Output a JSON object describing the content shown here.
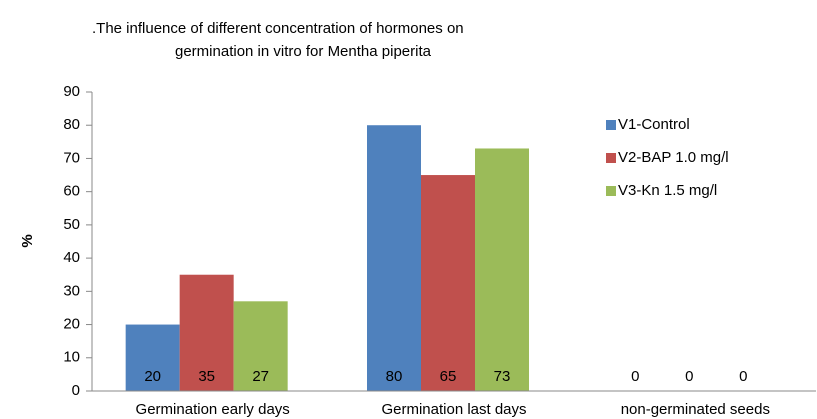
{
  "chart_data": {
    "type": "bar",
    "title": [
      ".The influence of different concentration of hormones on",
      "germination in vitro for Mentha piperita"
    ],
    "y_label": "%",
    "categories": [
      "Germination early days",
      "Germination last days",
      "non-germinated seeds"
    ],
    "series": [
      {
        "name": "V1-Control",
        "color": "#4f81bd",
        "values": [
          20,
          80,
          0
        ]
      },
      {
        "name": "V2-BAP 1.0 mg/l",
        "color": "#c0504d",
        "values": [
          35,
          65,
          0
        ]
      },
      {
        "name": "V3-Kn 1.5 mg/l",
        "color": "#9bbb59",
        "values": [
          27,
          73,
          0
        ]
      }
    ],
    "ylim": [
      0,
      90
    ],
    "yticks": [
      0,
      10,
      20,
      30,
      40,
      50,
      60,
      70,
      80,
      90
    ],
    "grid": false,
    "legend": "top-right",
    "data_labels": true
  }
}
